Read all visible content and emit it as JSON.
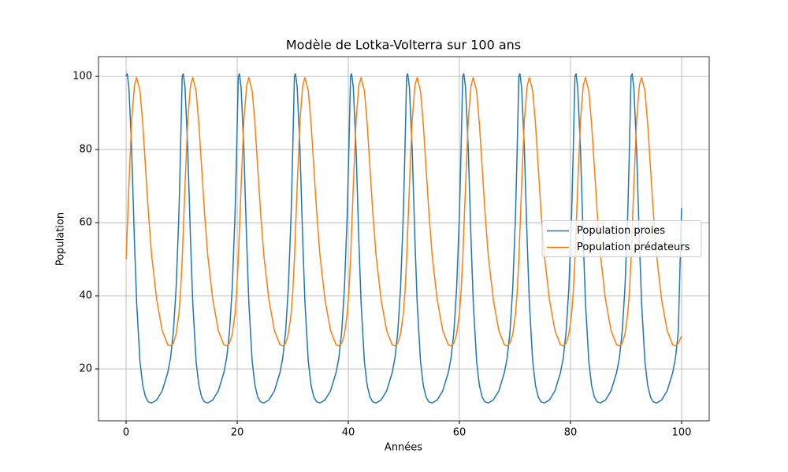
{
  "chart_data": {
    "type": "line",
    "title": "Modèle de Lotka-Volterra sur 100 ans",
    "xlabel": "Années",
    "ylabel": "Population",
    "xlim": [
      -4.97,
      104.97
    ],
    "xticks": [
      0,
      20,
      40,
      60,
      80,
      100
    ],
    "ylim": [
      5.8,
      105.4
    ],
    "yticks": [
      20,
      40,
      60,
      80,
      100
    ],
    "grid": true,
    "legend": "center right",
    "x": [
      0,
      0.2,
      0.5,
      1,
      1.5,
      1.9,
      2.5,
      3,
      3.5,
      4,
      4.6,
      5.5,
      6.5,
      7.5,
      8,
      8.5,
      9,
      9.5,
      9.8,
      10.1,
      10.3,
      10.6,
      11.1,
      11.6,
      12,
      12.6,
      13.1,
      13.6,
      14.1,
      14.7,
      15.6,
      16.6,
      17.6,
      18.1,
      18.6,
      19.1,
      19.6,
      19.9,
      20.2,
      20.4,
      20.7,
      21.2,
      21.7,
      22.1,
      22.7,
      23.2,
      23.7,
      24.2,
      24.8,
      25.7,
      26.7,
      27.7,
      28.2,
      28.7,
      29.2,
      29.7,
      30,
      30.3,
      30.5,
      30.8,
      31.3,
      31.8,
      32.2,
      32.8,
      33.3,
      33.8,
      34.3,
      34.9,
      35.8,
      36.8,
      37.8,
      38.3,
      38.8,
      39.3,
      39.8,
      40.1,
      40.4,
      40.6,
      40.9,
      41.4,
      41.9,
      42.3,
      42.9,
      43.4,
      43.9,
      44.4,
      45,
      45.9,
      46.9,
      47.9,
      48.4,
      48.9,
      49.4,
      49.9,
      50.2,
      50.5,
      50.7,
      51,
      51.5,
      52,
      52.4,
      53,
      53.5,
      54,
      54.5,
      55.1,
      56,
      57,
      58,
      58.5,
      59,
      59.5,
      60,
      60.3,
      60.6,
      60.8,
      61.1,
      61.6,
      62.1,
      62.5,
      63.1,
      63.6,
      64.1,
      64.6,
      65.2,
      66.1,
      67.1,
      68.1,
      68.6,
      69.1,
      69.6,
      70.1,
      70.4,
      70.7,
      70.9,
      71.2,
      71.7,
      72.2,
      72.6,
      73.2,
      73.7,
      74.2,
      74.7,
      75.3,
      76.2,
      77.2,
      78.2,
      78.7,
      79.2,
      79.7,
      80.2,
      80.5,
      80.8,
      81,
      81.3,
      81.8,
      82.3,
      82.7,
      83.3,
      83.8,
      84.3,
      84.8,
      85.4,
      86.3,
      87.3,
      88.3,
      88.8,
      89.3,
      89.8,
      90.3,
      90.6,
      90.9,
      91.1,
      91.4,
      91.9,
      92.4,
      92.8,
      93.4,
      93.9,
      94.4,
      94.9,
      95.5,
      96.4,
      97.4,
      98.4,
      98.9,
      99.4,
      100
    ],
    "series": [
      {
        "name": "Population proies",
        "color": "#1f77b4",
        "values": [
          100,
          100.7,
          97,
          80,
          55,
          38,
          22,
          15.5,
          12.3,
          11,
          10.7,
          11.5,
          14,
          19,
          23,
          30,
          42,
          62,
          80,
          100,
          100.7,
          97,
          80,
          55,
          38,
          22,
          15.5,
          12.3,
          11,
          10.7,
          11.5,
          14,
          19,
          23,
          30,
          42,
          62,
          80,
          100,
          100.7,
          97,
          80,
          55,
          38,
          22,
          15.5,
          12.3,
          11,
          10.7,
          11.5,
          14,
          19,
          23,
          30,
          42,
          62,
          80,
          100,
          100.7,
          97,
          80,
          55,
          38,
          22,
          15.5,
          12.3,
          11,
          10.7,
          11.5,
          14,
          19,
          23,
          30,
          42,
          62,
          80,
          100,
          100.7,
          97,
          80,
          55,
          38,
          22,
          15.5,
          12.3,
          11,
          10.7,
          11.5,
          14,
          19,
          23,
          30,
          42,
          62,
          80,
          100,
          100.7,
          97,
          80,
          55,
          38,
          22,
          15.5,
          12.3,
          11,
          10.7,
          11.5,
          14,
          19,
          23,
          30,
          42,
          62,
          80,
          100,
          100.7,
          97,
          80,
          55,
          38,
          22,
          15.5,
          12.3,
          11,
          10.7,
          11.5,
          14,
          19,
          23,
          30,
          42,
          62,
          80,
          100,
          100.7,
          97,
          80,
          55,
          38,
          22,
          15.5,
          12.3,
          11,
          10.7,
          11.5,
          14,
          19,
          23,
          30,
          42,
          62,
          80,
          100,
          100.7,
          97,
          80,
          55,
          38,
          22,
          15.5,
          12.3,
          11,
          10.7,
          11.5,
          14,
          19,
          23,
          30,
          42,
          62,
          80,
          100,
          100.7,
          97,
          80,
          55,
          38,
          22,
          15.5,
          12.3,
          11,
          10.7,
          11.5,
          14,
          19,
          23,
          30,
          64
        ]
      },
      {
        "name": "Population prédateurs",
        "color": "#ff7f0e",
        "values": [
          50,
          58,
          70,
          88,
          97.5,
          99.7,
          96,
          87,
          75,
          63,
          51,
          39,
          30.5,
          26.6,
          26.3,
          27,
          29.5,
          35,
          41,
          50,
          58,
          70,
          88,
          97.5,
          99.7,
          96,
          87,
          75,
          63,
          51,
          39,
          30.5,
          26.6,
          26.3,
          27,
          29.5,
          35,
          41,
          50,
          58,
          70,
          88,
          97.5,
          99.7,
          96,
          87,
          75,
          63,
          51,
          39,
          30.5,
          26.6,
          26.3,
          27,
          29.5,
          35,
          41,
          50,
          58,
          70,
          88,
          97.5,
          99.7,
          96,
          87,
          75,
          63,
          51,
          39,
          30.5,
          26.6,
          26.3,
          27,
          29.5,
          35,
          41,
          50,
          58,
          70,
          88,
          97.5,
          99.7,
          96,
          87,
          75,
          63,
          51,
          39,
          30.5,
          26.6,
          26.3,
          27,
          29.5,
          35,
          41,
          50,
          58,
          70,
          88,
          97.5,
          99.7,
          96,
          87,
          75,
          63,
          51,
          39,
          30.5,
          26.6,
          26.3,
          27,
          29.5,
          35,
          41,
          50,
          58,
          70,
          88,
          97.5,
          99.7,
          96,
          87,
          75,
          63,
          51,
          39,
          30.5,
          26.6,
          26.3,
          27,
          29.5,
          35,
          41,
          50,
          58,
          70,
          88,
          97.5,
          99.7,
          96,
          87,
          75,
          63,
          51,
          39,
          30.5,
          26.6,
          26.3,
          27,
          29.5,
          35,
          41,
          50,
          58,
          70,
          88,
          97.5,
          99.7,
          96,
          87,
          75,
          63,
          51,
          39,
          30.5,
          26.6,
          26.3,
          27,
          29.5,
          35,
          41,
          50,
          58,
          70,
          88,
          97.5,
          99.7,
          96,
          87,
          75,
          63,
          51,
          39,
          30.5,
          26.6,
          26.3,
          27,
          29
        ]
      }
    ]
  }
}
